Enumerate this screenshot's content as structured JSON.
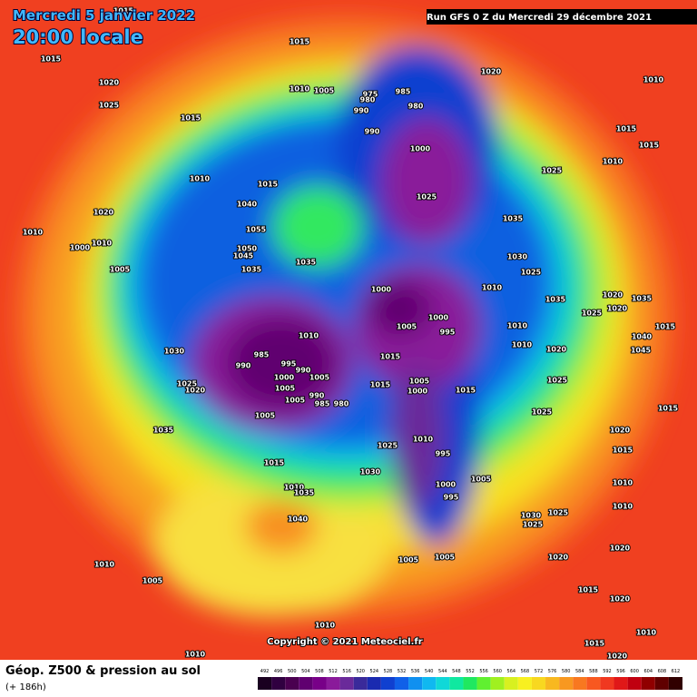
{
  "header": {
    "title": "Mercredi 5 janvier 2022",
    "time": "20:00 locale",
    "run": "Run GFS 0 Z du Mercredi 29 décembre 2021",
    "copyright": "Copyright © 2021 Meteociel.fr"
  },
  "legend": {
    "title": "Géop. Z500 & pression au sol",
    "subtitle": "(+ 186h)",
    "values": [
      492,
      496,
      500,
      504,
      508,
      512,
      516,
      520,
      524,
      528,
      532,
      536,
      540,
      544,
      548,
      552,
      556,
      560,
      564,
      568,
      572,
      576,
      580,
      584,
      588,
      592,
      596,
      600,
      604,
      608,
      612
    ],
    "colors": [
      "#1a0020",
      "#300040",
      "#4a0050",
      "#600070",
      "#780088",
      "#8a1a9a",
      "#6a2a9a",
      "#3a2a9a",
      "#1a2ab0",
      "#1040d0",
      "#1060e8",
      "#1090f0",
      "#10b8f0",
      "#10d8d8",
      "#10e8a0",
      "#20e860",
      "#60f030",
      "#a0f020",
      "#d8f020",
      "#f8f020",
      "#f8d820",
      "#f8b820",
      "#f89820",
      "#f87820",
      "#f85820",
      "#f03820",
      "#e01818",
      "#c00010",
      "#900000",
      "#600000",
      "#300000"
    ]
  },
  "isobar_labels": [
    "1015",
    "1015",
    "1015",
    "1020",
    "1010",
    "1020",
    "1025",
    "1015",
    "1010",
    "1005",
    "975",
    "980",
    "985",
    "980",
    "990",
    "990",
    "1000",
    "1015",
    "1015",
    "1010",
    "1025",
    "1010",
    "1015",
    "1025",
    "1040",
    "1020",
    "1035",
    "1010",
    "1055",
    "1000",
    "1010",
    "1050",
    "1045",
    "1030",
    "1035",
    "1005",
    "1035",
    "1025",
    "1010",
    "1000",
    "1020",
    "1035",
    "1035",
    "1025",
    "1020",
    "1000",
    "1005",
    "995",
    "1010",
    "1010",
    "1015",
    "1040",
    "1010",
    "1045",
    "985",
    "1030",
    "1020",
    "1015",
    "990",
    "995",
    "990",
    "1000",
    "1005",
    "1005",
    "1015",
    "1025",
    "1025",
    "1005",
    "1000",
    "1015",
    "990",
    "1020",
    "1005",
    "985",
    "980",
    "1015",
    "1005",
    "1025",
    "1035",
    "1020",
    "1010",
    "1025",
    "995",
    "1015",
    "1015",
    "1030",
    "1005",
    "1010",
    "1000",
    "1035",
    "995",
    "1010",
    "1030",
    "1025",
    "1025",
    "1040",
    "1010",
    "1005",
    "1005",
    "1020",
    "1020",
    "1010",
    "1005",
    "1015",
    "1020",
    "1010",
    "1010",
    "1015",
    "1010",
    "1020"
  ]
}
